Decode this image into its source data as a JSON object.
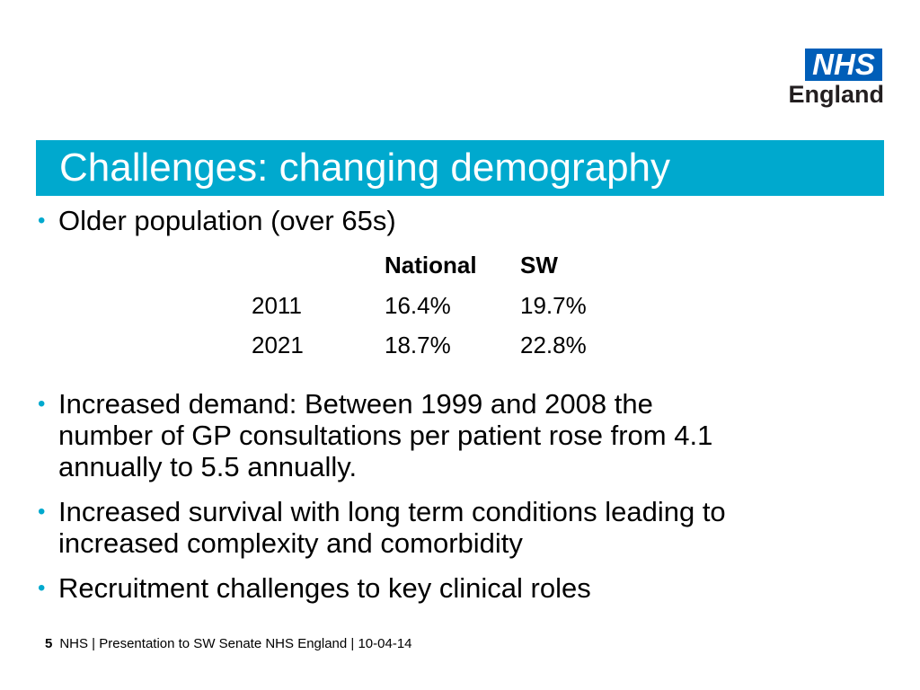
{
  "logo": {
    "box_text": "NHS",
    "sub_text": "England",
    "brand_color": "#005eb8"
  },
  "header": {
    "title": "Challenges: changing demography",
    "bar_color": "#00a9ce"
  },
  "bullets": [
    "Older population (over 65s)",
    "Increased demand: Between 1999 and 2008 the number of GP consultations per patient rose from 4.1 annually to 5.5 annually.",
    "Increased survival with long term conditions leading to increased complexity and comorbidity",
    "Recruitment challenges to key clinical roles"
  ],
  "table": {
    "headers": [
      "",
      "National",
      "SW"
    ],
    "rows": [
      [
        "2011",
        "16.4%",
        "19.7%"
      ],
      [
        "2021",
        "18.7%",
        "22.8%"
      ]
    ]
  },
  "footer": {
    "page_number": "5",
    "text": "NHS | Presentation to SW Senate  NHS England | 10-04-14"
  }
}
